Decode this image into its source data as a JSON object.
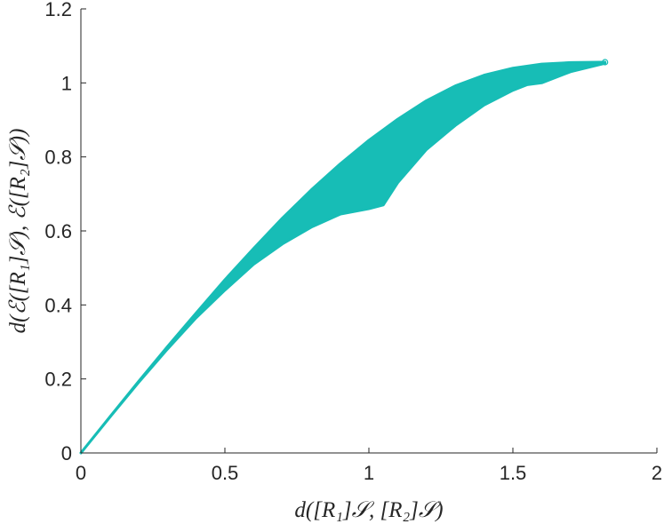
{
  "chart_data": {
    "type": "scatter",
    "title": "",
    "xlabel": "d([R₁]𝒮, [R₂]𝒮)",
    "ylabel": "d(ℰ([R₁]𝒮), ℰ([R₂]𝒮))",
    "xlim": [
      0,
      2
    ],
    "ylim": [
      0,
      1.2
    ],
    "x_ticks": [
      0,
      0.5,
      1,
      1.5,
      2
    ],
    "x_tick_labels": [
      "0",
      "0.5",
      "1",
      "1.5",
      "2"
    ],
    "y_ticks": [
      0,
      0.2,
      0.4,
      0.6,
      0.8,
      1,
      1.2
    ],
    "y_tick_labels": [
      "0",
      "0.2",
      "0.4",
      "0.6",
      "0.8",
      "1",
      "1.2"
    ],
    "grid": false,
    "marker_color": "#17bdb6",
    "series": [
      {
        "upper_envelope": [
          [
            0,
            0
          ],
          [
            0.1,
            0.097
          ],
          [
            0.2,
            0.193
          ],
          [
            0.3,
            0.287
          ],
          [
            0.4,
            0.378
          ],
          [
            0.5,
            0.468
          ],
          [
            0.6,
            0.553
          ],
          [
            0.7,
            0.635
          ],
          [
            0.8,
            0.711
          ],
          [
            0.9,
            0.781
          ],
          [
            1.0,
            0.845
          ],
          [
            1.1,
            0.902
          ],
          [
            1.2,
            0.952
          ],
          [
            1.3,
            0.992
          ],
          [
            1.4,
            1.021
          ],
          [
            1.5,
            1.04
          ],
          [
            1.6,
            1.051
          ],
          [
            1.7,
            1.055
          ],
          [
            1.8,
            1.056
          ],
          [
            1.82,
            1.056
          ]
        ],
        "lower_envelope": [
          [
            0,
            0
          ],
          [
            0.1,
            0.096
          ],
          [
            0.2,
            0.19
          ],
          [
            0.3,
            0.28
          ],
          [
            0.4,
            0.365
          ],
          [
            0.5,
            0.44
          ],
          [
            0.6,
            0.51
          ],
          [
            0.7,
            0.565
          ],
          [
            0.8,
            0.61
          ],
          [
            0.9,
            0.645
          ],
          [
            1.0,
            0.66
          ],
          [
            1.05,
            0.67
          ],
          [
            1.1,
            0.73
          ],
          [
            1.2,
            0.82
          ],
          [
            1.3,
            0.885
          ],
          [
            1.4,
            0.94
          ],
          [
            1.5,
            0.98
          ],
          [
            1.55,
            0.995
          ],
          [
            1.6,
            1.0
          ],
          [
            1.7,
            1.03
          ],
          [
            1.82,
            1.053
          ]
        ]
      }
    ]
  }
}
